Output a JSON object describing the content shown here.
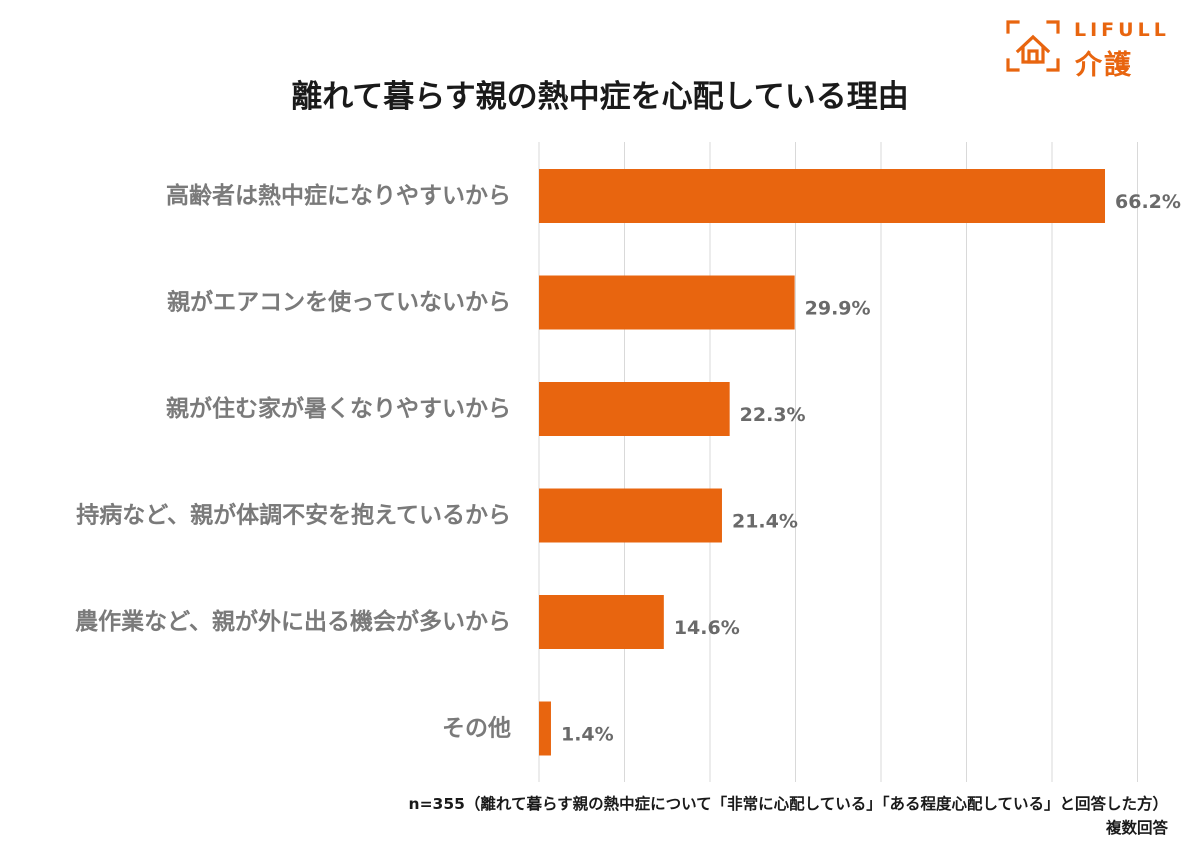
{
  "logo": {
    "brand": "LIFULL",
    "service": "介護",
    "color": "#e8650f"
  },
  "header": {
    "title": "離れて暮らす親の熱中症を心配している理由"
  },
  "chart_data": {
    "type": "bar",
    "orientation": "horizontal",
    "title": "離れて暮らす親の熱中症を心配している理由",
    "categories": [
      "高齢者は熱中症になりやすいから",
      "親がエアコンを使っていないから",
      "親が住む家が暑くなりやすいから",
      "持病など、親が体調不安を抱えているから",
      "農作業など、親が外に出る機会が多いから",
      "その他"
    ],
    "values": [
      66.2,
      29.9,
      22.3,
      21.4,
      14.6,
      1.4
    ],
    "value_labels": [
      "66.2%",
      "29.9%",
      "22.3%",
      "21.4%",
      "14.6%",
      "1.4%"
    ],
    "xlim": [
      0,
      70
    ],
    "grid": true,
    "bar_color": "#e8650f"
  },
  "footnote": {
    "sample": "n=355（離れて暮らす親の熱中症について「非常に心配している」「ある程度心配している」と回答した方）",
    "answer_type": "複数回答"
  }
}
